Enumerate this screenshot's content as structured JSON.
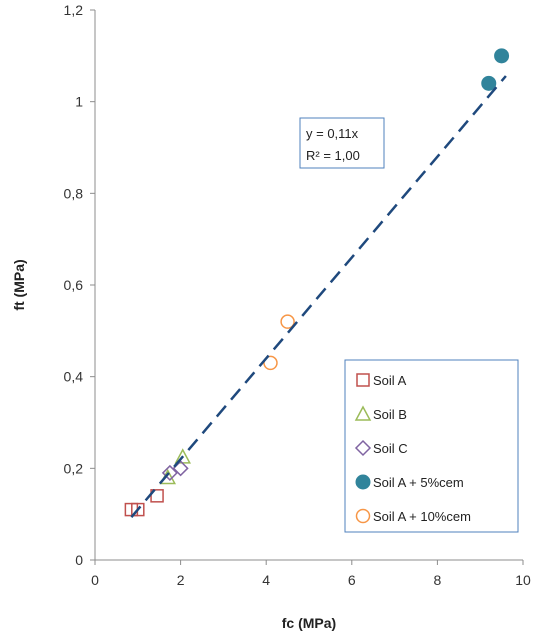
{
  "chart_data": {
    "type": "scatter",
    "xlabel": "fc (MPa)",
    "ylabel": "ft (MPa)",
    "xlim": [
      0,
      10
    ],
    "ylim": [
      0,
      1.2
    ],
    "x_ticks": [
      "0",
      "2",
      "4",
      "6",
      "8",
      "10"
    ],
    "y_ticks": [
      "0",
      "0,2",
      "0,4",
      "0,6",
      "0,8",
      "1",
      "1,2"
    ],
    "grid": false,
    "legend_position": "bottom-right",
    "series": [
      {
        "name": "Soil A",
        "marker": "square",
        "color": "#C0504D",
        "x": [
          0.85,
          1.0,
          1.45
        ],
        "y": [
          0.11,
          0.11,
          0.14
        ]
      },
      {
        "name": "Soil B",
        "marker": "triangle",
        "color": "#9BBB59",
        "x": [
          1.7,
          2.05
        ],
        "y": [
          0.18,
          0.225
        ]
      },
      {
        "name": "Soil C",
        "marker": "diamond",
        "color": "#8064A2",
        "x": [
          1.75,
          2.0
        ],
        "y": [
          0.19,
          0.2
        ]
      },
      {
        "name": "Soil A + 5%cem",
        "marker": "filled-circle",
        "color": "#31849B",
        "x": [
          9.2,
          9.5
        ],
        "y": [
          1.04,
          1.1
        ]
      },
      {
        "name": "Soil A + 10%cem",
        "marker": "circle",
        "color": "#F79646",
        "x": [
          4.1,
          4.5
        ],
        "y": [
          0.43,
          0.52
        ]
      }
    ],
    "trendline": {
      "slope": 0.11,
      "x_range": [
        0.85,
        9.6
      ],
      "color": "#1F497D",
      "style": "dashed"
    },
    "annotation": {
      "line1": "y = 0,11x",
      "line2": "R² = 1,00"
    }
  }
}
